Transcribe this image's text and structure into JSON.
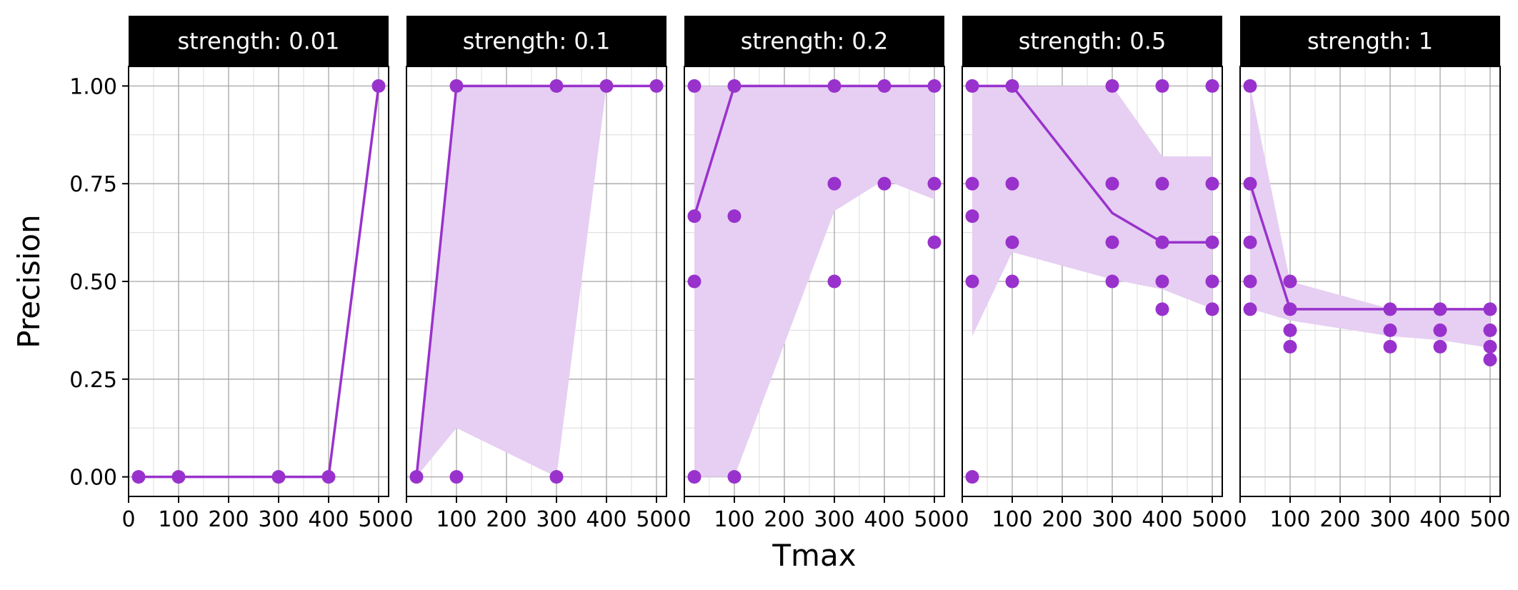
{
  "chart_data": {
    "type": "scatter",
    "xlabel": "Tmax",
    "ylabel": "Precision",
    "xlim": [
      0,
      520
    ],
    "ylim": [
      -0.05,
      1.05
    ],
    "x_ticks": [
      0,
      100,
      200,
      300,
      400,
      500
    ],
    "x_tick_labels": [
      "0",
      "100",
      "200",
      "300",
      "400",
      "500"
    ],
    "y_ticks": [
      0,
      0.25,
      0.5,
      0.75,
      1.0
    ],
    "y_tick_labels": [
      "0.00",
      "0.25",
      "0.50",
      "0.75",
      "1.00"
    ],
    "grid": true,
    "colors": {
      "point": "#9932CC",
      "line": "#9932CC",
      "ribbon": "#E6CFF2",
      "strip": "#000000"
    },
    "panels": [
      {
        "label": "strength: 0.01",
        "points": [
          [
            20,
            0
          ],
          [
            100,
            0
          ],
          [
            300,
            0
          ],
          [
            400,
            0
          ],
          [
            500,
            1.0
          ]
        ],
        "line": [
          [
            20,
            0
          ],
          [
            100,
            0
          ],
          [
            300,
            0
          ],
          [
            400,
            0
          ],
          [
            500,
            1.0
          ]
        ],
        "ribbon": []
      },
      {
        "label": "strength: 0.1",
        "points": [
          [
            20,
            0
          ],
          [
            100,
            1.0
          ],
          [
            100,
            0
          ],
          [
            300,
            1.0
          ],
          [
            300,
            0
          ],
          [
            400,
            1.0
          ],
          [
            500,
            1.0
          ]
        ],
        "line": [
          [
            20,
            0
          ],
          [
            100,
            1.0
          ],
          [
            300,
            1.0
          ],
          [
            400,
            1.0
          ],
          [
            500,
            1.0
          ]
        ],
        "ribbon": [
          [
            20,
            0,
            0
          ],
          [
            100,
            0.125,
            1.0
          ],
          [
            300,
            0,
            1.0
          ],
          [
            400,
            1.0,
            1.0
          ],
          [
            500,
            1.0,
            1.0
          ]
        ]
      },
      {
        "label": "strength: 0.2",
        "points": [
          [
            20,
            1.0
          ],
          [
            20,
            0.667
          ],
          [
            20,
            0.5
          ],
          [
            20,
            0
          ],
          [
            100,
            1.0
          ],
          [
            100,
            0.667
          ],
          [
            100,
            0
          ],
          [
            300,
            1.0
          ],
          [
            300,
            0.75
          ],
          [
            300,
            0.5
          ],
          [
            400,
            1.0
          ],
          [
            400,
            0.75
          ],
          [
            500,
            1.0
          ],
          [
            500,
            0.75
          ],
          [
            500,
            0.6
          ]
        ],
        "line": [
          [
            20,
            0.667
          ],
          [
            100,
            1.0
          ],
          [
            300,
            1.0
          ],
          [
            400,
            1.0
          ],
          [
            500,
            1.0
          ]
        ],
        "ribbon": [
          [
            20,
            0,
            1.0
          ],
          [
            100,
            0,
            1.0
          ],
          [
            300,
            0.68,
            1.0
          ],
          [
            400,
            0.76,
            1.0
          ],
          [
            500,
            0.71,
            1.0
          ]
        ]
      },
      {
        "label": "strength: 0.5",
        "points": [
          [
            20,
            1.0
          ],
          [
            20,
            0.75
          ],
          [
            20,
            0.667
          ],
          [
            20,
            0.5
          ],
          [
            20,
            0
          ],
          [
            100,
            1.0
          ],
          [
            100,
            0.75
          ],
          [
            100,
            0.6
          ],
          [
            100,
            0.5
          ],
          [
            300,
            1.0
          ],
          [
            300,
            0.75
          ],
          [
            300,
            0.6
          ],
          [
            300,
            0.5
          ],
          [
            400,
            1.0
          ],
          [
            400,
            0.75
          ],
          [
            400,
            0.6
          ],
          [
            400,
            0.5
          ],
          [
            400,
            0.429
          ],
          [
            500,
            1.0
          ],
          [
            500,
            0.75
          ],
          [
            500,
            0.6
          ],
          [
            500,
            0.5
          ],
          [
            500,
            0.429
          ]
        ],
        "line": [
          [
            20,
            1.0
          ],
          [
            100,
            1.0
          ],
          [
            300,
            0.675
          ],
          [
            400,
            0.6
          ],
          [
            500,
            0.6
          ]
        ],
        "ribbon": [
          [
            20,
            0.36,
            1.0
          ],
          [
            100,
            0.575,
            1.0
          ],
          [
            300,
            0.505,
            1.0
          ],
          [
            400,
            0.48,
            0.82
          ],
          [
            500,
            0.43,
            0.82
          ]
        ]
      },
      {
        "label": "strength: 1",
        "points": [
          [
            20,
            1.0
          ],
          [
            20,
            0.75
          ],
          [
            20,
            0.6
          ],
          [
            20,
            0.5
          ],
          [
            20,
            0.429
          ],
          [
            100,
            0.5
          ],
          [
            100,
            0.429
          ],
          [
            100,
            0.375
          ],
          [
            100,
            0.333
          ],
          [
            300,
            0.429
          ],
          [
            300,
            0.375
          ],
          [
            300,
            0.333
          ],
          [
            400,
            0.429
          ],
          [
            400,
            0.375
          ],
          [
            400,
            0.333
          ],
          [
            500,
            0.429
          ],
          [
            500,
            0.375
          ],
          [
            500,
            0.333
          ],
          [
            500,
            0.3
          ]
        ],
        "line": [
          [
            20,
            0.75
          ],
          [
            100,
            0.429
          ],
          [
            300,
            0.429
          ],
          [
            400,
            0.429
          ],
          [
            500,
            0.429
          ]
        ],
        "ribbon": [
          [
            20,
            0.43,
            1.0
          ],
          [
            100,
            0.4,
            0.5
          ],
          [
            300,
            0.36,
            0.43
          ],
          [
            400,
            0.35,
            0.43
          ],
          [
            500,
            0.33,
            0.43
          ]
        ]
      }
    ]
  }
}
